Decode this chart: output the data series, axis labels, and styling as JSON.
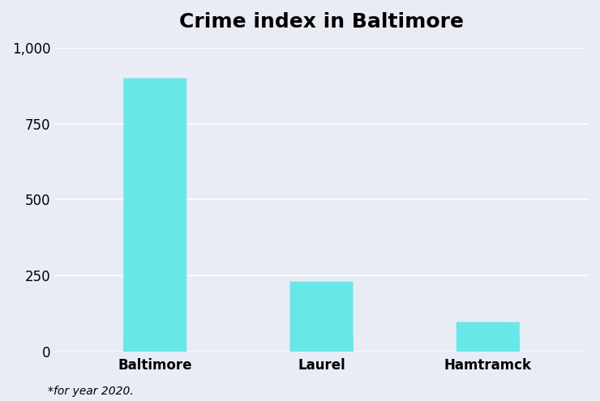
{
  "title": "Crime index in Baltimore",
  "categories": [
    "Baltimore",
    "Laurel",
    "Hamtramck"
  ],
  "values": [
    900,
    230,
    97
  ],
  "bar_color": "#67E8E8",
  "background_color": "#EAECF5",
  "ylim": [
    0,
    1000
  ],
  "yticks": [
    0,
    250,
    500,
    750,
    1000
  ],
  "ytick_labels": [
    "0",
    "250",
    "500",
    "750",
    "1,000"
  ],
  "title_fontsize": 18,
  "tick_fontsize": 12,
  "footnote": "*for year 2020.",
  "footnote_fontsize": 10,
  "bar_width": 0.38,
  "rounding_size": 18
}
